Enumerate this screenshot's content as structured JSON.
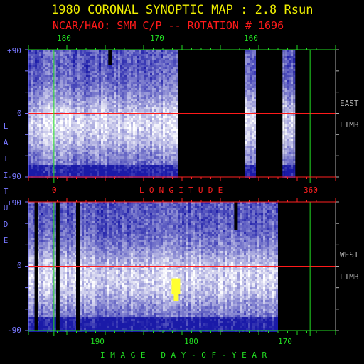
{
  "title": "1980 CORONAL SYNOPTIC MAP : 2.8 Rsun",
  "subtitle": "NCAR/HAO: SMM C/P -- ROTATION # 1696",
  "colors": {
    "title": "#f0f000",
    "subtitle": "#ff1a1a",
    "axis_green": "#22dd22",
    "axis_red": "#ff2020",
    "axis_blue": "#7777ff",
    "axis_grey": "#b0b0b0",
    "data_low": "#1a1aa8",
    "data_high": "#ffffff",
    "data_peak": "#ffff30",
    "no_data": "#000000"
  },
  "chart_data": [
    {
      "type": "heatmap",
      "name": "east-limb-map",
      "title": "",
      "xlabel": "LONGITUDE",
      "ylabel": "LATITUDE",
      "side_label": [
        "EAST",
        "LIMB"
      ],
      "top_ticks": [
        "180",
        "170",
        "160"
      ],
      "bottom_ticks": [
        "0",
        "360"
      ],
      "y_ticks": [
        "+90",
        "0",
        "-90"
      ],
      "ylim": [
        -90,
        90
      ],
      "equator_line": 0,
      "data_segments": [
        [
          0.0,
          0.485
        ],
        [
          0.706,
          0.74
        ],
        [
          0.827,
          0.866
        ]
      ],
      "dark_streaks": [
        [
          0.26,
          0.88,
          1.0
        ]
      ],
      "grid": false
    },
    {
      "type": "heatmap",
      "name": "west-limb-map",
      "title": "",
      "xlabel": "IMAGE DAY-OF-YEAR",
      "ylabel": "LATITUDE",
      "side_label": [
        "WEST",
        "LIMB"
      ],
      "bottom_ticks": [
        "190",
        "180",
        "170"
      ],
      "y_ticks": [
        "+90",
        "0",
        "-90"
      ],
      "ylim": [
        -90,
        90
      ],
      "equator_line": 0,
      "data_segments": [
        [
          0.0,
          0.81
        ]
      ],
      "dark_streaks": [
        [
          0.02,
          0.0,
          1.0
        ],
        [
          0.09,
          0.0,
          1.0
        ],
        [
          0.155,
          0.0,
          1.0
        ],
        [
          0.67,
          0.78,
          1.0
        ]
      ],
      "bright_spot": {
        "x": 0.48,
        "y": -25
      },
      "grid": false
    }
  ]
}
